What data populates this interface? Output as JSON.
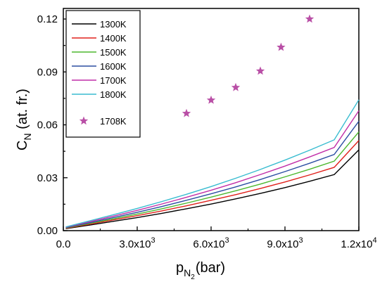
{
  "chart_data": {
    "type": "line",
    "xlabel": {
      "main": "p",
      "sub": "N",
      "subsub": "2",
      "unit": "(bar)"
    },
    "ylabel": {
      "main": "C",
      "sub": "N",
      "rest": " (at. fr.)"
    },
    "xlim": [
      0,
      12000
    ],
    "ylim": [
      0,
      0.126
    ],
    "xticks": [
      {
        "value": 0,
        "label": "0.0",
        "exp": ""
      },
      {
        "value": 3000,
        "label": "3.0x10",
        "exp": "3"
      },
      {
        "value": 6000,
        "label": "6.0x10",
        "exp": "3"
      },
      {
        "value": 9000,
        "label": "9.0x10",
        "exp": "3"
      },
      {
        "value": 12000,
        "label": "1.2x10",
        "exp": "4"
      }
    ],
    "yticks": [
      {
        "value": 0,
        "label": "0.00"
      },
      {
        "value": 0.03,
        "label": "0.03"
      },
      {
        "value": 0.06,
        "label": "0.06"
      },
      {
        "value": 0.09,
        "label": "0.09"
      },
      {
        "value": 0.12,
        "label": "0.12"
      }
    ],
    "grid": false,
    "legend_position": "top-left",
    "series": [
      {
        "name": "1300K",
        "color": "#000000",
        "x": [
          100,
          1000,
          2000,
          3000,
          4000,
          5000,
          6000,
          7000,
          8000,
          9000,
          10000,
          11000,
          12000
        ],
        "y": [
          0.0011,
          0.003,
          0.0052,
          0.0074,
          0.0098,
          0.0124,
          0.0151,
          0.018,
          0.0211,
          0.0244,
          0.028,
          0.0318,
          0.0458
        ]
      },
      {
        "name": "1400K",
        "color": "#e0201b",
        "x": [
          100,
          1000,
          2000,
          3000,
          4000,
          5000,
          6000,
          7000,
          8000,
          9000,
          10000,
          11000,
          12000
        ],
        "y": [
          0.0013,
          0.0035,
          0.006,
          0.0085,
          0.0112,
          0.0141,
          0.0172,
          0.0204,
          0.0239,
          0.0276,
          0.0316,
          0.0359,
          0.0511
        ]
      },
      {
        "name": "1500K",
        "color": "#4db82f",
        "x": [
          100,
          1000,
          2000,
          3000,
          4000,
          5000,
          6000,
          7000,
          8000,
          9000,
          10000,
          11000,
          12000
        ],
        "y": [
          0.0015,
          0.0039,
          0.0066,
          0.0094,
          0.0124,
          0.0156,
          0.019,
          0.0226,
          0.0264,
          0.0305,
          0.0348,
          0.0394,
          0.056
        ]
      },
      {
        "name": "1600K",
        "color": "#2b4ea2",
        "x": [
          100,
          1000,
          2000,
          3000,
          4000,
          5000,
          6000,
          7000,
          8000,
          9000,
          10000,
          11000,
          12000
        ],
        "y": [
          0.0017,
          0.0043,
          0.0073,
          0.0104,
          0.0137,
          0.0172,
          0.0209,
          0.0248,
          0.029,
          0.0335,
          0.0382,
          0.0432,
          0.062
        ]
      },
      {
        "name": "1700K",
        "color": "#c12ea8",
        "x": [
          100,
          1000,
          2000,
          3000,
          4000,
          5000,
          6000,
          7000,
          8000,
          9000,
          10000,
          11000,
          12000
        ],
        "y": [
          0.0019,
          0.0048,
          0.0081,
          0.0115,
          0.0151,
          0.0189,
          0.0229,
          0.0272,
          0.0318,
          0.0366,
          0.0418,
          0.0472,
          0.068
        ]
      },
      {
        "name": "1800K",
        "color": "#38bcd0",
        "x": [
          100,
          1000,
          2000,
          3000,
          4000,
          5000,
          6000,
          7000,
          8000,
          9000,
          10000,
          11000,
          12000
        ],
        "y": [
          0.0021,
          0.0053,
          0.0089,
          0.0126,
          0.0165,
          0.0206,
          0.025,
          0.0297,
          0.0347,
          0.04,
          0.0456,
          0.0515,
          0.0742
        ]
      }
    ],
    "scatter": {
      "name": "1708K",
      "color": "#b94fa6",
      "marker": "star",
      "x": [
        5000,
        6000,
        7000,
        8000,
        8840,
        10000
      ],
      "y": [
        0.0665,
        0.074,
        0.0812,
        0.0905,
        0.104,
        0.12
      ]
    }
  }
}
